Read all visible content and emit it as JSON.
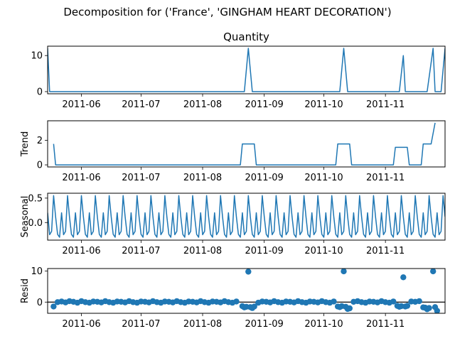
{
  "figure": {
    "suptitle": "Decomposition for ('France', 'GINGHAM HEART DECORATION')"
  },
  "chart_data": [
    {
      "type": "line",
      "title": "Quantity",
      "ylabel": "",
      "xlim": [
        "2011-05-15",
        "2011-12-01"
      ],
      "ylim": [
        -0.6,
        12.6
      ],
      "yticks": [
        0,
        10
      ],
      "xticks": [
        "2011-06-01",
        "2011-07-01",
        "2011-08-01",
        "2011-09-01",
        "2011-10-01",
        "2011-11-01"
      ],
      "xtick_labels": [
        "2011-06",
        "2011-07",
        "2011-08",
        "2011-09",
        "2011-10",
        "2011-11"
      ],
      "points": [
        {
          "x": "2011-05-15",
          "y": 12
        },
        {
          "x": "2011-05-16",
          "y": 0
        },
        {
          "x": "2011-08-22",
          "y": 0
        },
        {
          "x": "2011-08-24",
          "y": 12
        },
        {
          "x": "2011-08-26",
          "y": 0
        },
        {
          "x": "2011-10-09",
          "y": 0
        },
        {
          "x": "2011-10-11",
          "y": 12
        },
        {
          "x": "2011-10-13",
          "y": 0
        },
        {
          "x": "2011-11-08",
          "y": 0
        },
        {
          "x": "2011-11-10",
          "y": 10
        },
        {
          "x": "2011-11-11",
          "y": 0
        },
        {
          "x": "2011-11-22",
          "y": 0
        },
        {
          "x": "2011-11-25",
          "y": 12
        },
        {
          "x": "2011-11-26",
          "y": 0
        },
        {
          "x": "2011-11-29",
          "y": 0
        },
        {
          "x": "2011-12-01",
          "y": 12
        }
      ]
    },
    {
      "type": "line",
      "title": "",
      "ylabel": "Trend",
      "xlim": [
        "2011-05-15",
        "2011-12-01"
      ],
      "ylim": [
        -0.17,
        3.6
      ],
      "yticks": [
        0,
        2
      ],
      "xticks": [
        "2011-06-01",
        "2011-07-01",
        "2011-08-01",
        "2011-09-01",
        "2011-10-01",
        "2011-11-01"
      ],
      "xtick_labels": [
        "2011-06",
        "2011-07",
        "2011-08",
        "2011-09",
        "2011-10",
        "2011-11"
      ],
      "points": [
        {
          "x": "2011-05-18",
          "y": 1.71
        },
        {
          "x": "2011-05-19",
          "y": 0
        },
        {
          "x": "2011-08-20",
          "y": 0
        },
        {
          "x": "2011-08-21",
          "y": 1.71
        },
        {
          "x": "2011-08-27",
          "y": 1.71
        },
        {
          "x": "2011-08-28",
          "y": 0
        },
        {
          "x": "2011-10-07",
          "y": 0
        },
        {
          "x": "2011-10-08",
          "y": 1.71
        },
        {
          "x": "2011-10-14",
          "y": 1.71
        },
        {
          "x": "2011-10-15",
          "y": 0
        },
        {
          "x": "2011-11-05",
          "y": 0
        },
        {
          "x": "2011-11-06",
          "y": 1.43
        },
        {
          "x": "2011-11-12",
          "y": 1.43
        },
        {
          "x": "2011-11-13",
          "y": 0
        },
        {
          "x": "2011-11-19",
          "y": 0
        },
        {
          "x": "2011-11-20",
          "y": 1.71
        },
        {
          "x": "2011-11-24",
          "y": 1.71
        },
        {
          "x": "2011-11-26",
          "y": 3.43
        }
      ]
    },
    {
      "type": "line",
      "title": "",
      "ylabel": "Seasonal",
      "xlim": [
        "2011-05-15",
        "2011-12-01"
      ],
      "ylim": [
        -0.36,
        0.6
      ],
      "yticks": [
        0.0,
        0.5
      ],
      "ytick_labels": [
        "0.0",
        "0.5"
      ],
      "xticks": [
        "2011-06-01",
        "2011-07-01",
        "2011-08-01",
        "2011-09-01",
        "2011-10-01",
        "2011-11-01"
      ],
      "xtick_labels": [
        "2011-06",
        "2011-07",
        "2011-08",
        "2011-09",
        "2011-10",
        "2011-11"
      ],
      "period_days": 7,
      "start": "2011-05-15",
      "end": "2011-12-01",
      "cycle_values": [
        0.2,
        -0.25,
        -0.18,
        0.55,
        0.12,
        -0.24,
        -0.3
      ]
    },
    {
      "type": "scatter",
      "title": "",
      "ylabel": "Resid",
      "xlim": [
        "2011-05-15",
        "2011-12-01"
      ],
      "ylim": [
        -3.6,
        10.8
      ],
      "yticks": [
        0,
        10
      ],
      "xticks": [
        "2011-06-01",
        "2011-07-01",
        "2011-08-01",
        "2011-09-01",
        "2011-10-01",
        "2011-11-01"
      ],
      "xtick_labels": [
        "2011-06",
        "2011-07",
        "2011-08",
        "2011-09",
        "2011-10",
        "2011-11"
      ],
      "baseline": 0,
      "points": [
        {
          "x": "2011-05-18",
          "y": -1.4
        },
        {
          "x": "2011-05-20",
          "y": 0.0
        },
        {
          "x": "2011-05-22",
          "y": 0.2
        },
        {
          "x": "2011-05-24",
          "y": -0.1
        },
        {
          "x": "2011-05-26",
          "y": 0.3
        },
        {
          "x": "2011-05-28",
          "y": 0.1
        },
        {
          "x": "2011-05-30",
          "y": -0.2
        },
        {
          "x": "2011-06-01",
          "y": 0.3
        },
        {
          "x": "2011-06-03",
          "y": 0.0
        },
        {
          "x": "2011-06-05",
          "y": -0.2
        },
        {
          "x": "2011-06-07",
          "y": 0.2
        },
        {
          "x": "2011-06-09",
          "y": 0.1
        },
        {
          "x": "2011-06-11",
          "y": -0.1
        },
        {
          "x": "2011-06-13",
          "y": 0.3
        },
        {
          "x": "2011-06-15",
          "y": 0.0
        },
        {
          "x": "2011-06-17",
          "y": -0.2
        },
        {
          "x": "2011-06-19",
          "y": 0.2
        },
        {
          "x": "2011-06-21",
          "y": 0.1
        },
        {
          "x": "2011-06-23",
          "y": -0.1
        },
        {
          "x": "2011-06-25",
          "y": 0.3
        },
        {
          "x": "2011-06-27",
          "y": 0.0
        },
        {
          "x": "2011-06-29",
          "y": -0.2
        },
        {
          "x": "2011-07-01",
          "y": 0.2
        },
        {
          "x": "2011-07-03",
          "y": 0.1
        },
        {
          "x": "2011-07-05",
          "y": -0.1
        },
        {
          "x": "2011-07-07",
          "y": 0.3
        },
        {
          "x": "2011-07-09",
          "y": 0.0
        },
        {
          "x": "2011-07-11",
          "y": -0.2
        },
        {
          "x": "2011-07-13",
          "y": 0.2
        },
        {
          "x": "2011-07-15",
          "y": 0.1
        },
        {
          "x": "2011-07-17",
          "y": -0.1
        },
        {
          "x": "2011-07-19",
          "y": 0.3
        },
        {
          "x": "2011-07-21",
          "y": 0.0
        },
        {
          "x": "2011-07-23",
          "y": -0.2
        },
        {
          "x": "2011-07-25",
          "y": 0.2
        },
        {
          "x": "2011-07-27",
          "y": 0.1
        },
        {
          "x": "2011-07-29",
          "y": -0.1
        },
        {
          "x": "2011-07-31",
          "y": 0.3
        },
        {
          "x": "2011-08-02",
          "y": 0.0
        },
        {
          "x": "2011-08-04",
          "y": -0.2
        },
        {
          "x": "2011-08-06",
          "y": 0.2
        },
        {
          "x": "2011-08-08",
          "y": 0.1
        },
        {
          "x": "2011-08-10",
          "y": -0.1
        },
        {
          "x": "2011-08-12",
          "y": 0.3
        },
        {
          "x": "2011-08-14",
          "y": 0.0
        },
        {
          "x": "2011-08-16",
          "y": -0.2
        },
        {
          "x": "2011-08-18",
          "y": 0.2
        },
        {
          "x": "2011-08-21",
          "y": -1.3
        },
        {
          "x": "2011-08-22",
          "y": -1.7
        },
        {
          "x": "2011-08-23",
          "y": -1.5
        },
        {
          "x": "2011-08-24",
          "y": 9.8
        },
        {
          "x": "2011-08-25",
          "y": -1.6
        },
        {
          "x": "2011-08-26",
          "y": -1.9
        },
        {
          "x": "2011-08-27",
          "y": -1.4
        },
        {
          "x": "2011-08-29",
          "y": -0.2
        },
        {
          "x": "2011-08-31",
          "y": 0.2
        },
        {
          "x": "2011-09-02",
          "y": 0.1
        },
        {
          "x": "2011-09-04",
          "y": -0.1
        },
        {
          "x": "2011-09-06",
          "y": 0.3
        },
        {
          "x": "2011-09-08",
          "y": 0.0
        },
        {
          "x": "2011-09-10",
          "y": -0.2
        },
        {
          "x": "2011-09-12",
          "y": 0.2
        },
        {
          "x": "2011-09-14",
          "y": 0.1
        },
        {
          "x": "2011-09-16",
          "y": -0.1
        },
        {
          "x": "2011-09-18",
          "y": 0.3
        },
        {
          "x": "2011-09-20",
          "y": 0.0
        },
        {
          "x": "2011-09-22",
          "y": -0.2
        },
        {
          "x": "2011-09-24",
          "y": 0.2
        },
        {
          "x": "2011-09-26",
          "y": 0.1
        },
        {
          "x": "2011-09-28",
          "y": -0.1
        },
        {
          "x": "2011-09-30",
          "y": 0.3
        },
        {
          "x": "2011-10-02",
          "y": 0.0
        },
        {
          "x": "2011-10-04",
          "y": -0.2
        },
        {
          "x": "2011-10-06",
          "y": 0.2
        },
        {
          "x": "2011-10-08",
          "y": -1.4
        },
        {
          "x": "2011-10-09",
          "y": -1.6
        },
        {
          "x": "2011-10-10",
          "y": -1.3
        },
        {
          "x": "2011-10-11",
          "y": 9.9
        },
        {
          "x": "2011-10-12",
          "y": -1.5
        },
        {
          "x": "2011-10-13",
          "y": -2.2
        },
        {
          "x": "2011-10-14",
          "y": -2.0
        },
        {
          "x": "2011-10-16",
          "y": 0.1
        },
        {
          "x": "2011-10-18",
          "y": 0.3
        },
        {
          "x": "2011-10-20",
          "y": 0.0
        },
        {
          "x": "2011-10-22",
          "y": -0.2
        },
        {
          "x": "2011-10-24",
          "y": 0.2
        },
        {
          "x": "2011-10-26",
          "y": 0.1
        },
        {
          "x": "2011-10-28",
          "y": -0.1
        },
        {
          "x": "2011-10-30",
          "y": 0.3
        },
        {
          "x": "2011-11-01",
          "y": 0.0
        },
        {
          "x": "2011-11-03",
          "y": -0.2
        },
        {
          "x": "2011-11-05",
          "y": 0.2
        },
        {
          "x": "2011-11-07",
          "y": -1.2
        },
        {
          "x": "2011-11-08",
          "y": -1.5
        },
        {
          "x": "2011-11-09",
          "y": -1.3
        },
        {
          "x": "2011-11-10",
          "y": 8.0
        },
        {
          "x": "2011-11-11",
          "y": -1.4
        },
        {
          "x": "2011-11-12",
          "y": -1.2
        },
        {
          "x": "2011-11-14",
          "y": 0.2
        },
        {
          "x": "2011-11-16",
          "y": 0.1
        },
        {
          "x": "2011-11-18",
          "y": 0.3
        },
        {
          "x": "2011-11-20",
          "y": -1.7
        },
        {
          "x": "2011-11-21",
          "y": -1.8
        },
        {
          "x": "2011-11-22",
          "y": -2.3
        },
        {
          "x": "2011-11-23",
          "y": -1.9
        },
        {
          "x": "2011-11-25",
          "y": 9.9
        },
        {
          "x": "2011-11-26",
          "y": -1.6
        },
        {
          "x": "2011-11-27",
          "y": -2.8
        }
      ]
    }
  ]
}
